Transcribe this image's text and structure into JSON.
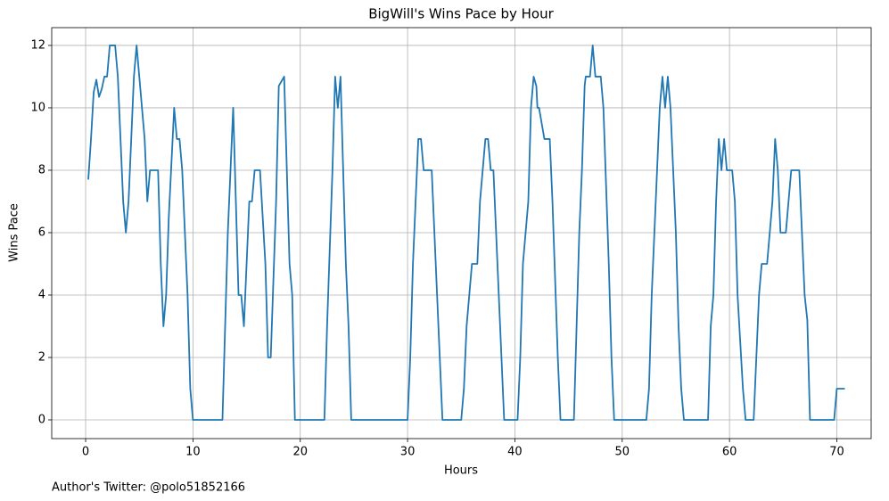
{
  "chart_data": {
    "type": "line",
    "title": "BigWill's Wins Pace by Hour",
    "xlabel": "Hours",
    "ylabel": "Wins Pace",
    "annotation": "Author's Twitter: @polo51852166",
    "color": "#1f77b4",
    "grid": true,
    "xlim": [
      -3.16,
      73.2
    ],
    "ylim": [
      -0.6,
      12.57
    ],
    "xticks": [
      0,
      10,
      20,
      30,
      40,
      50,
      60,
      70
    ],
    "yticks": [
      0,
      2,
      4,
      6,
      8,
      10,
      12
    ],
    "x": [
      0.25,
      0.5,
      0.75,
      1.0,
      1.25,
      1.5,
      1.75,
      2.0,
      2.25,
      2.75,
      3.0,
      3.5,
      3.75,
      4.0,
      4.5,
      4.75,
      5.0,
      5.5,
      5.75,
      6.0,
      6.75,
      7.0,
      7.25,
      7.5,
      7.75,
      8.25,
      8.5,
      8.75,
      9.0,
      9.5,
      9.75,
      10.0,
      12.75,
      13.25,
      13.75,
      14.25,
      14.5,
      14.75,
      15.25,
      15.5,
      15.75,
      16.25,
      16.75,
      17.0,
      17.25,
      17.75,
      18.0,
      18.5,
      19.0,
      19.25,
      19.5,
      22.25,
      22.5,
      23.0,
      23.25,
      23.5,
      23.75,
      24.0,
      24.25,
      24.5,
      24.75,
      30.0,
      30.25,
      30.5,
      31.0,
      31.25,
      31.5,
      32.25,
      32.75,
      33.25,
      35.0,
      35.25,
      35.5,
      36.0,
      36.5,
      36.75,
      37.25,
      37.5,
      37.75,
      38.0,
      38.5,
      38.75,
      39.0,
      40.25,
      40.5,
      40.75,
      41.25,
      41.5,
      41.75,
      42.0,
      42.1,
      42.25,
      42.75,
      43.25,
      43.5,
      44.0,
      44.25,
      45.5,
      45.75,
      46.0,
      46.25,
      46.5,
      46.6,
      47.0,
      47.25,
      47.5,
      48.0,
      48.25,
      48.75,
      49.0,
      49.25,
      52.25,
      52.5,
      52.75,
      53.25,
      53.5,
      53.75,
      54.0,
      54.25,
      54.5,
      55.0,
      55.25,
      55.5,
      55.75,
      58.0,
      58.25,
      58.5,
      58.75,
      59.0,
      59.25,
      59.5,
      59.75,
      60.25,
      60.5,
      60.75,
      61.25,
      61.5,
      62.25,
      62.5,
      62.75,
      63.0,
      63.5,
      64.0,
      64.25,
      64.5,
      64.75,
      65.25,
      65.5,
      65.75,
      66.5,
      67.0,
      67.25,
      67.5,
      69.75,
      70.0,
      70.75
    ],
    "values": [
      7.7,
      9,
      10.5,
      10.9,
      10.35,
      10.6,
      11,
      11,
      12,
      12,
      11,
      7,
      6,
      7,
      11,
      12,
      11,
      9,
      7,
      8,
      8,
      5,
      3,
      4,
      6.5,
      10,
      9,
      9,
      8,
      4,
      1,
      0,
      0,
      6,
      10,
      4,
      4,
      3,
      7,
      7,
      8,
      8,
      5,
      2,
      2,
      7,
      10.7,
      11,
      5,
      4,
      0,
      0,
      3,
      8,
      11,
      10,
      11,
      8,
      5,
      3,
      0,
      0,
      2,
      5,
      9,
      9,
      8,
      8,
      4,
      0,
      0,
      1,
      3,
      5,
      5,
      7,
      9,
      9,
      8,
      8,
      4,
      2,
      0,
      0,
      2,
      5,
      7,
      10,
      11,
      10.7,
      10,
      10,
      9,
      9,
      7,
      2,
      0,
      0,
      3,
      6,
      8,
      10.7,
      11,
      11,
      12,
      11,
      11,
      10,
      5,
      2,
      0,
      0,
      1,
      4,
      8,
      10,
      11,
      10,
      11,
      10,
      6,
      3,
      1,
      0,
      0,
      3,
      4,
      7,
      9,
      8,
      9,
      8,
      8,
      7,
      4,
      1,
      0,
      0,
      2,
      4,
      5,
      5,
      7,
      9,
      8,
      6,
      6,
      7,
      8,
      8,
      4,
      3.2,
      0,
      0,
      1,
      1
    ]
  }
}
